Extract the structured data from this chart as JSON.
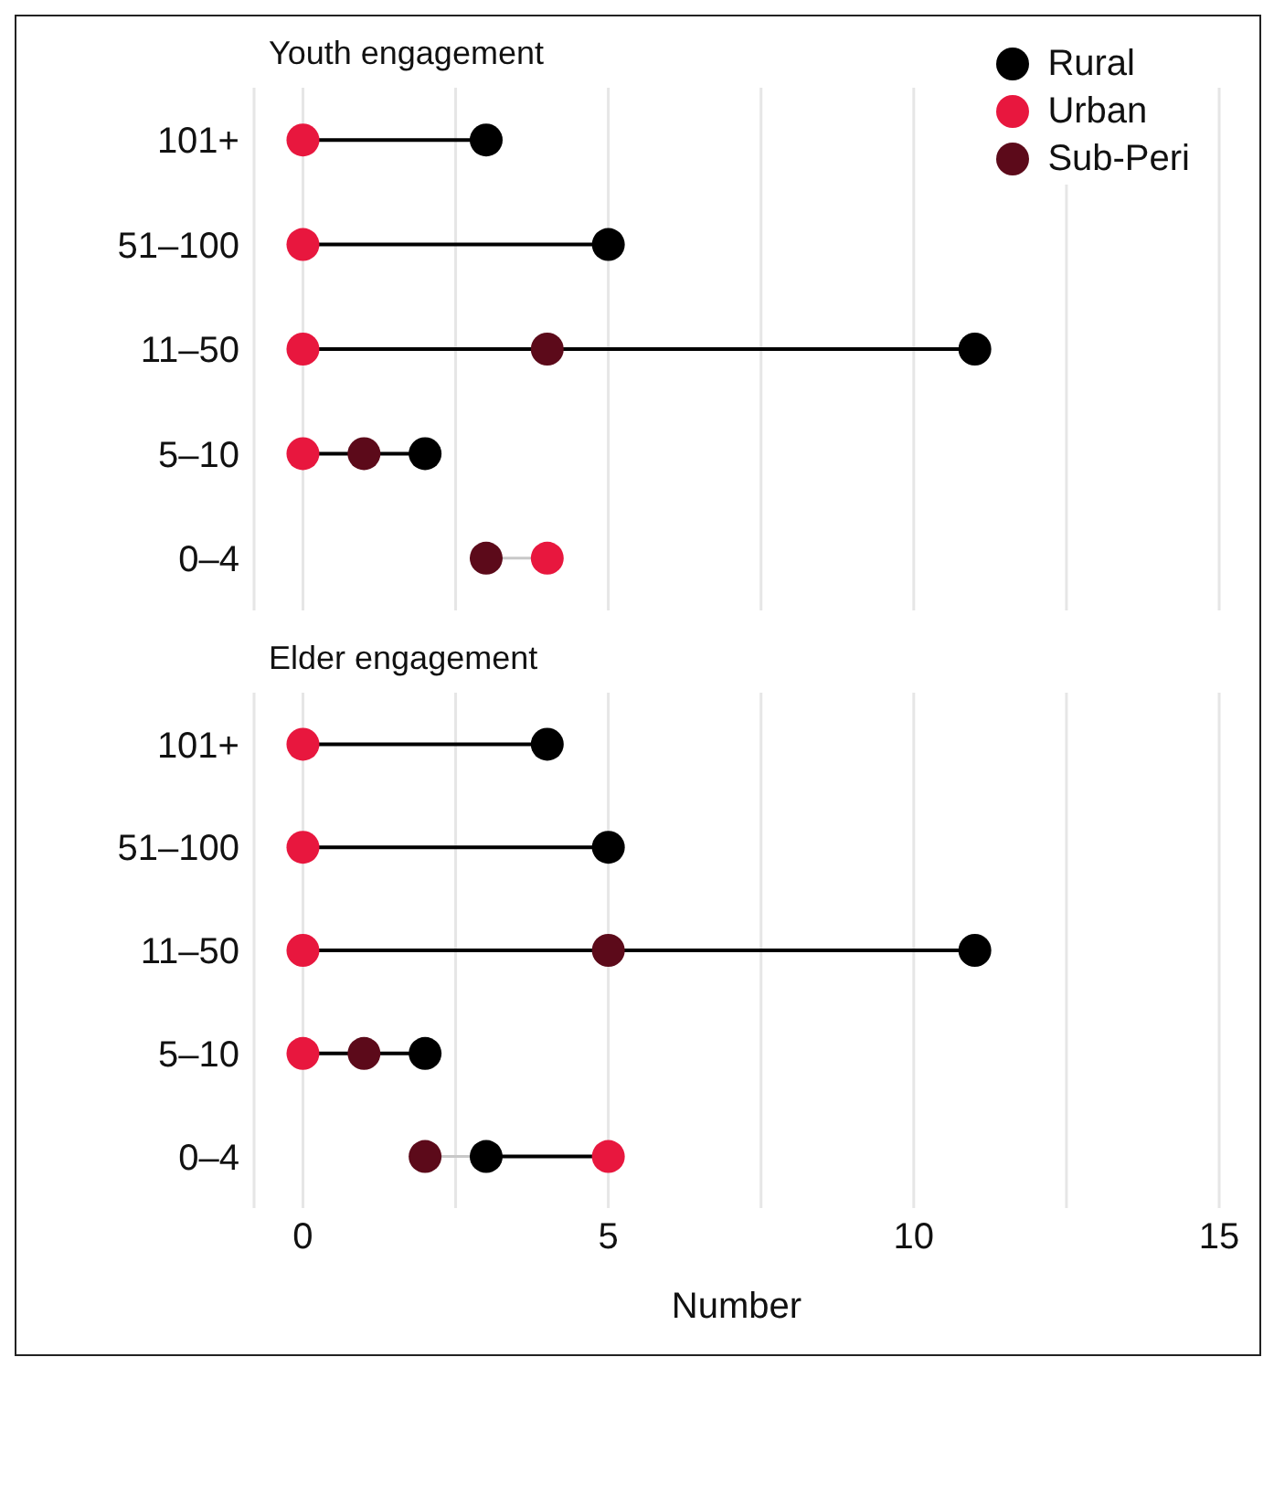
{
  "chart_data": [
    {
      "type": "scatter",
      "title": "Youth engagement",
      "orientation": "horizontal",
      "categories": [
        "101+",
        "51–100",
        "11–50",
        "5–10",
        "0–4"
      ],
      "series": [
        {
          "name": "Rural",
          "color": "#000000",
          "values": [
            3,
            5,
            11,
            2,
            null
          ]
        },
        {
          "name": "Urban",
          "color": "#e8173e",
          "values": [
            0,
            0,
            0,
            0,
            4
          ]
        },
        {
          "name": "Sub-Peri",
          "color": "#5c0a1a",
          "values": [
            null,
            null,
            4,
            1,
            3
          ]
        }
      ],
      "xlim": [
        -0.8,
        15
      ],
      "xticks": [
        0,
        {
          "value": 2.5,
          "label": null
        },
        5,
        {
          "value": 7.5,
          "label": null
        },
        10,
        {
          "value": 12.5,
          "label": null
        },
        15
      ],
      "tick_labels": "y",
      "grid": "x",
      "legend": "top right",
      "marker": "circle"
    },
    {
      "type": "scatter",
      "title": "Elder engagement",
      "xlabel": "Number",
      "orientation": "horizontal",
      "categories": [
        "101+",
        "51–100",
        "11–50",
        "5–10",
        "0–4"
      ],
      "series": [
        {
          "color": "#000000",
          "values": [
            4,
            5,
            11,
            2,
            3
          ]
        },
        {
          "color": "#e8173e",
          "values": [
            0,
            0,
            0,
            0,
            5
          ]
        },
        {
          "color": "#5c0a1a",
          "values": [
            null,
            null,
            5,
            1,
            2
          ]
        }
      ],
      "xlim": [
        -0.8,
        15
      ],
      "xticks": [
        0,
        {
          "value": 2.5,
          "label": null
        },
        5,
        {
          "value": 7.5,
          "label": null
        },
        10,
        {
          "value": 12.5,
          "label": null
        },
        15
      ],
      "grid": "x",
      "legend": false,
      "marker": "circle"
    }
  ]
}
